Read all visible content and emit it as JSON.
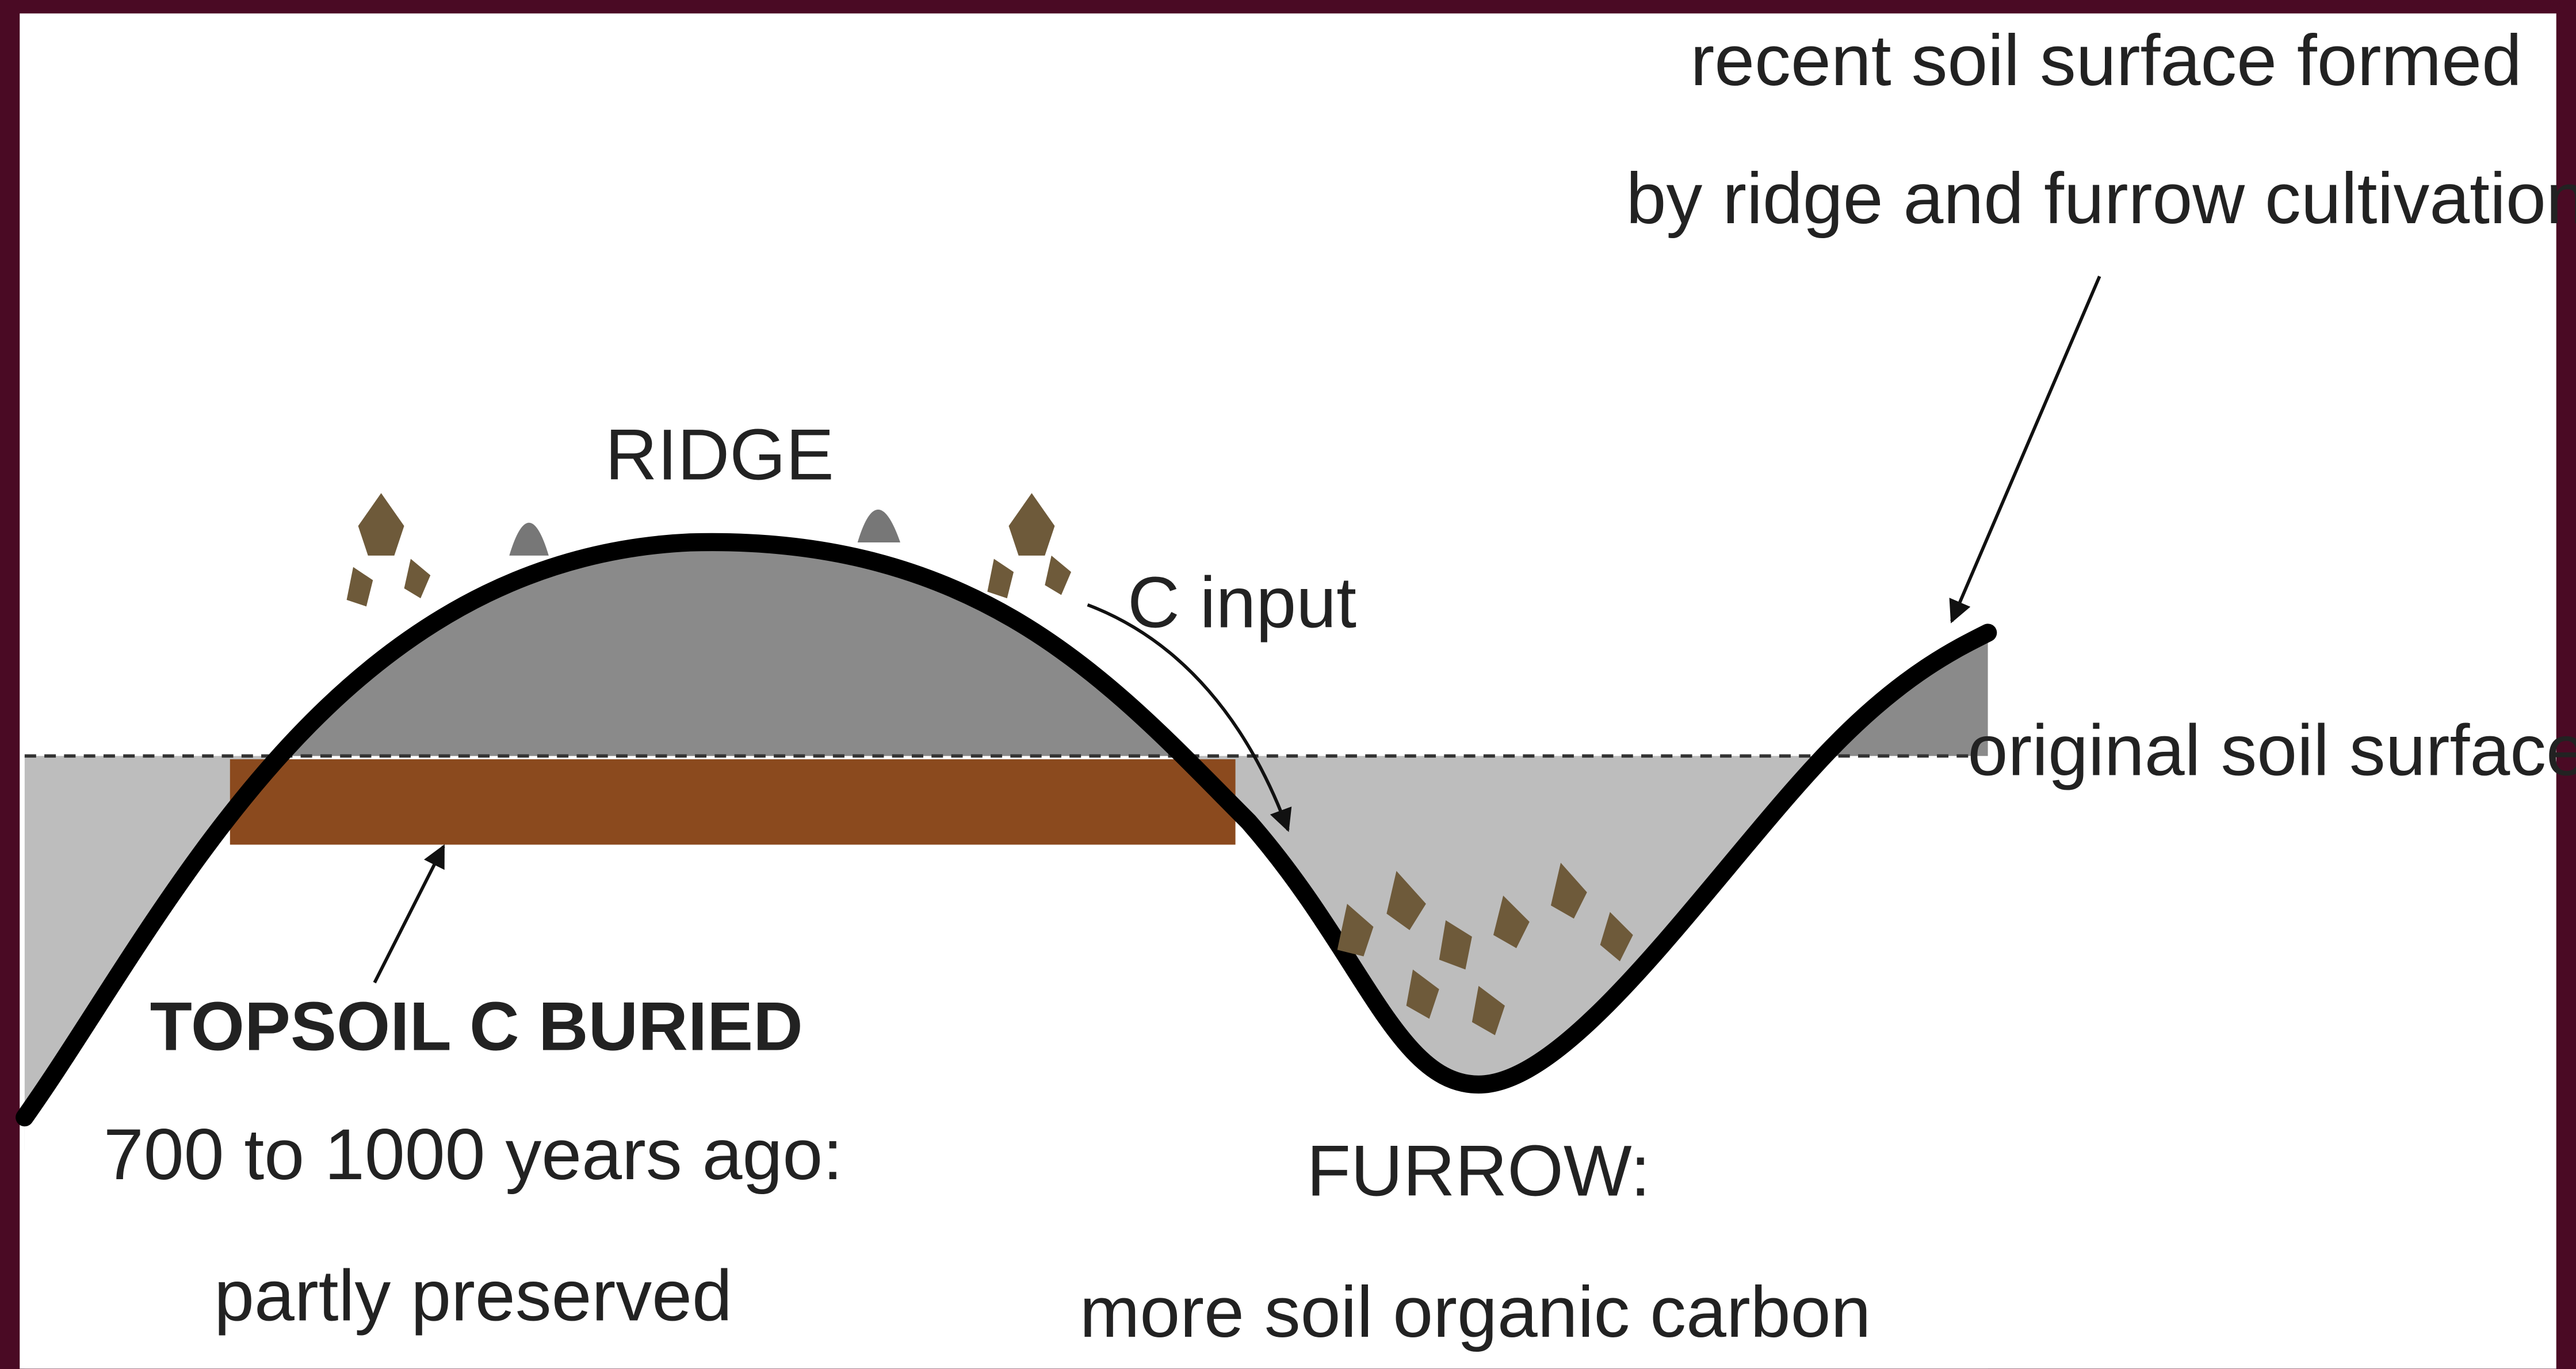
{
  "labels": {
    "top_note": [
      "recent soil surface formed",
      "by ridge and furrow cultivation"
    ],
    "ridge": "RIDGE",
    "c_input": "C input",
    "original_surface": "original soil surface",
    "topsoil": [
      "TOPSOIL C BURIED",
      "700 to 1000 years ago:",
      "partly preserved"
    ],
    "furrow": [
      "FURROW:",
      "more soil organic carbon"
    ]
  }
}
